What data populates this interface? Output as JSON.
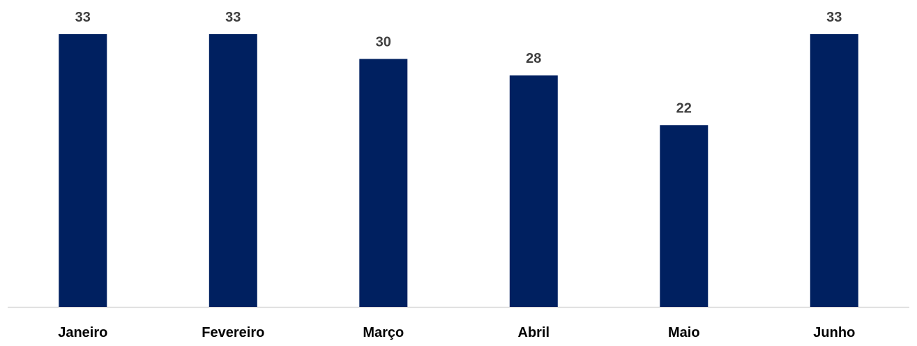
{
  "chart_data": {
    "type": "bar",
    "categories": [
      "Janeiro",
      "Fevereiro",
      "Março",
      "Abril",
      "Maio",
      "Junho"
    ],
    "values": [
      33,
      33,
      30,
      28,
      22,
      33
    ],
    "data_labels": [
      "33",
      "33",
      "30",
      "28",
      "22",
      "33"
    ],
    "title": "",
    "xlabel": "",
    "ylabel": "",
    "ylim": [
      0,
      33
    ],
    "grid": false,
    "legend": "none",
    "y_axis_visible": false,
    "bar_color": "#002060",
    "axis_line_color": "#d9d9d9",
    "data_label_color": "#404040",
    "tick_label_color": "#000000"
  }
}
